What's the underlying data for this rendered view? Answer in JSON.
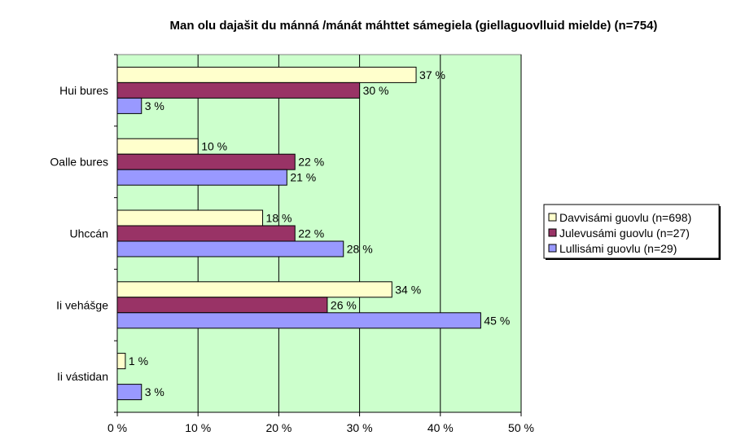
{
  "chart_data": {
    "type": "bar",
    "orientation": "horizontal",
    "title": "Man olu dajašit du mánná /mánát máhttet sámegiela (giellaguovlluid mielde) (n=754)",
    "categories": [
      "Hui bures",
      "Oalle bures",
      "Uhccán",
      "Ii vehášge",
      "Ii vástidan"
    ],
    "series": [
      {
        "name": "Davvisámi guovlu (n=698)",
        "color": "#ffffcc",
        "values": [
          37,
          10,
          18,
          34,
          1
        ]
      },
      {
        "name": "Julevusámi guovlu (n=27)",
        "color": "#993366",
        "values": [
          30,
          22,
          22,
          26,
          null
        ]
      },
      {
        "name": "Lullisámi guovlu (n=29)",
        "color": "#9999ff",
        "values": [
          3,
          21,
          28,
          45,
          3
        ]
      }
    ],
    "xlim": [
      0,
      50
    ],
    "xticks": [
      "0 %",
      "10 %",
      "20 %",
      "30 %",
      "40 %",
      "50 %"
    ],
    "value_suffix": " %",
    "plot_background": "#ccffcc",
    "grid": true,
    "legend_position": "right"
  }
}
